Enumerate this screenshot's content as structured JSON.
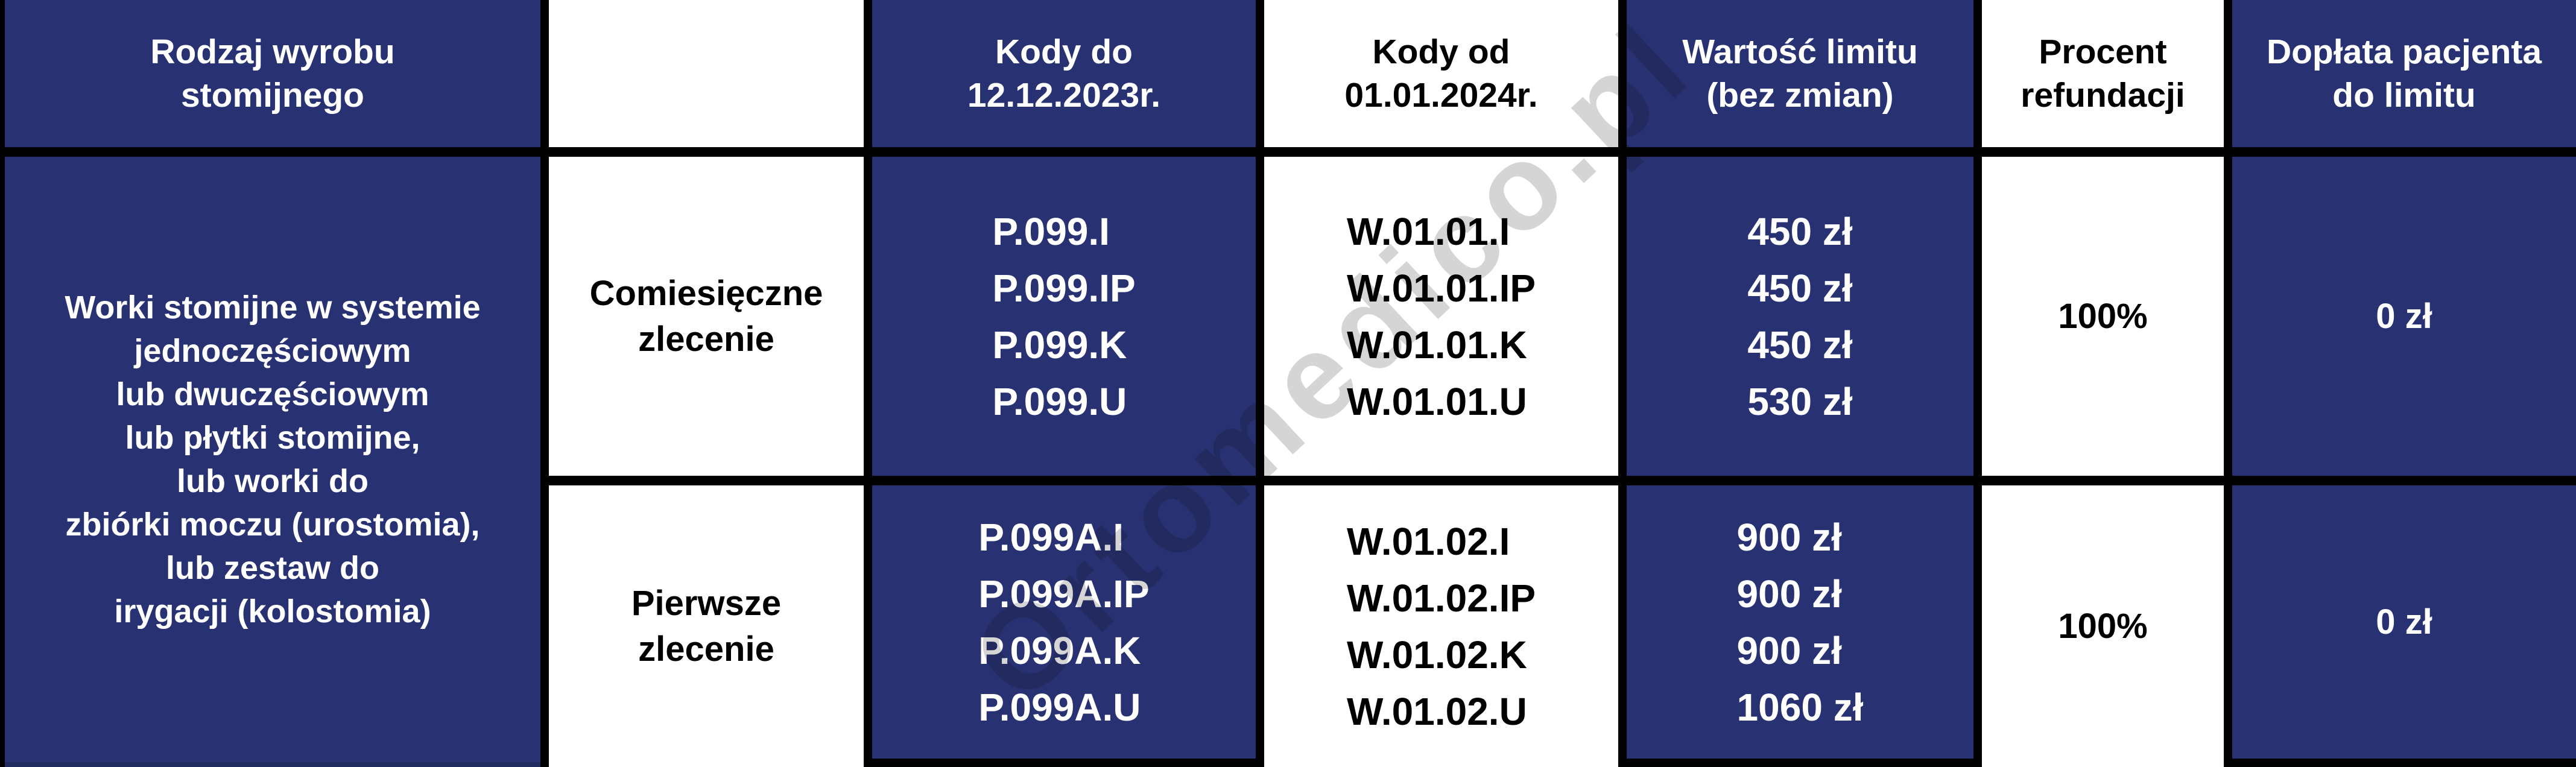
{
  "colors": {
    "navy": "#283273",
    "border_black": "#000000",
    "white": "#ffffff"
  },
  "watermark": "Ortomedico.pl",
  "header": {
    "product": [
      "Rodzaj wyrobu",
      "stomijnego"
    ],
    "order_blank": "",
    "codes_old": [
      "Kody do",
      "12.12.2023r."
    ],
    "codes_new": [
      "Kody od",
      "01.01.2024r."
    ],
    "limit": [
      "Wartość limitu",
      "(bez zmian)"
    ],
    "refund": [
      "Procent",
      "refundacji"
    ],
    "copay": [
      "Dopłata pacjenta",
      "do limitu"
    ]
  },
  "product_cell": [
    "Worki stomijne w systemie",
    "jednoczęściowym",
    "lub dwuczęściowym",
    "lub płytki stomijne,",
    "lub worki do",
    "zbiórki moczu (urostomia),",
    "lub zestaw do",
    "irygacji (kolostomia)"
  ],
  "rows": [
    {
      "order_type": [
        "Comiesięczne",
        "zlecenie"
      ],
      "codes_old": [
        "P.099.I",
        "P.099.IP",
        "P.099.K",
        "P.099.U"
      ],
      "codes_new": [
        "W.01.01.I",
        "W.01.01.IP",
        "W.01.01.K",
        "W.01.01.U"
      ],
      "limit_values": [
        "450 zł",
        "450 zł",
        "450 zł",
        "530 zł"
      ],
      "refund_percent": "100%",
      "patient_copay": "0 zł"
    },
    {
      "order_type": [
        "Pierwsze",
        "zlecenie"
      ],
      "codes_old": [
        "P.099A.I",
        "P.099A.IP",
        "P.099A.K",
        "P.099A.U"
      ],
      "codes_new": [
        "W.01.02.I",
        "W.01.02.IP",
        "W.01.02.K",
        "W.01.02.U"
      ],
      "limit_values": [
        "900 zł",
        "900 zł",
        "900 zł",
        "1060 zł"
      ],
      "refund_percent": "100%",
      "patient_copay": "0 zł"
    }
  ]
}
